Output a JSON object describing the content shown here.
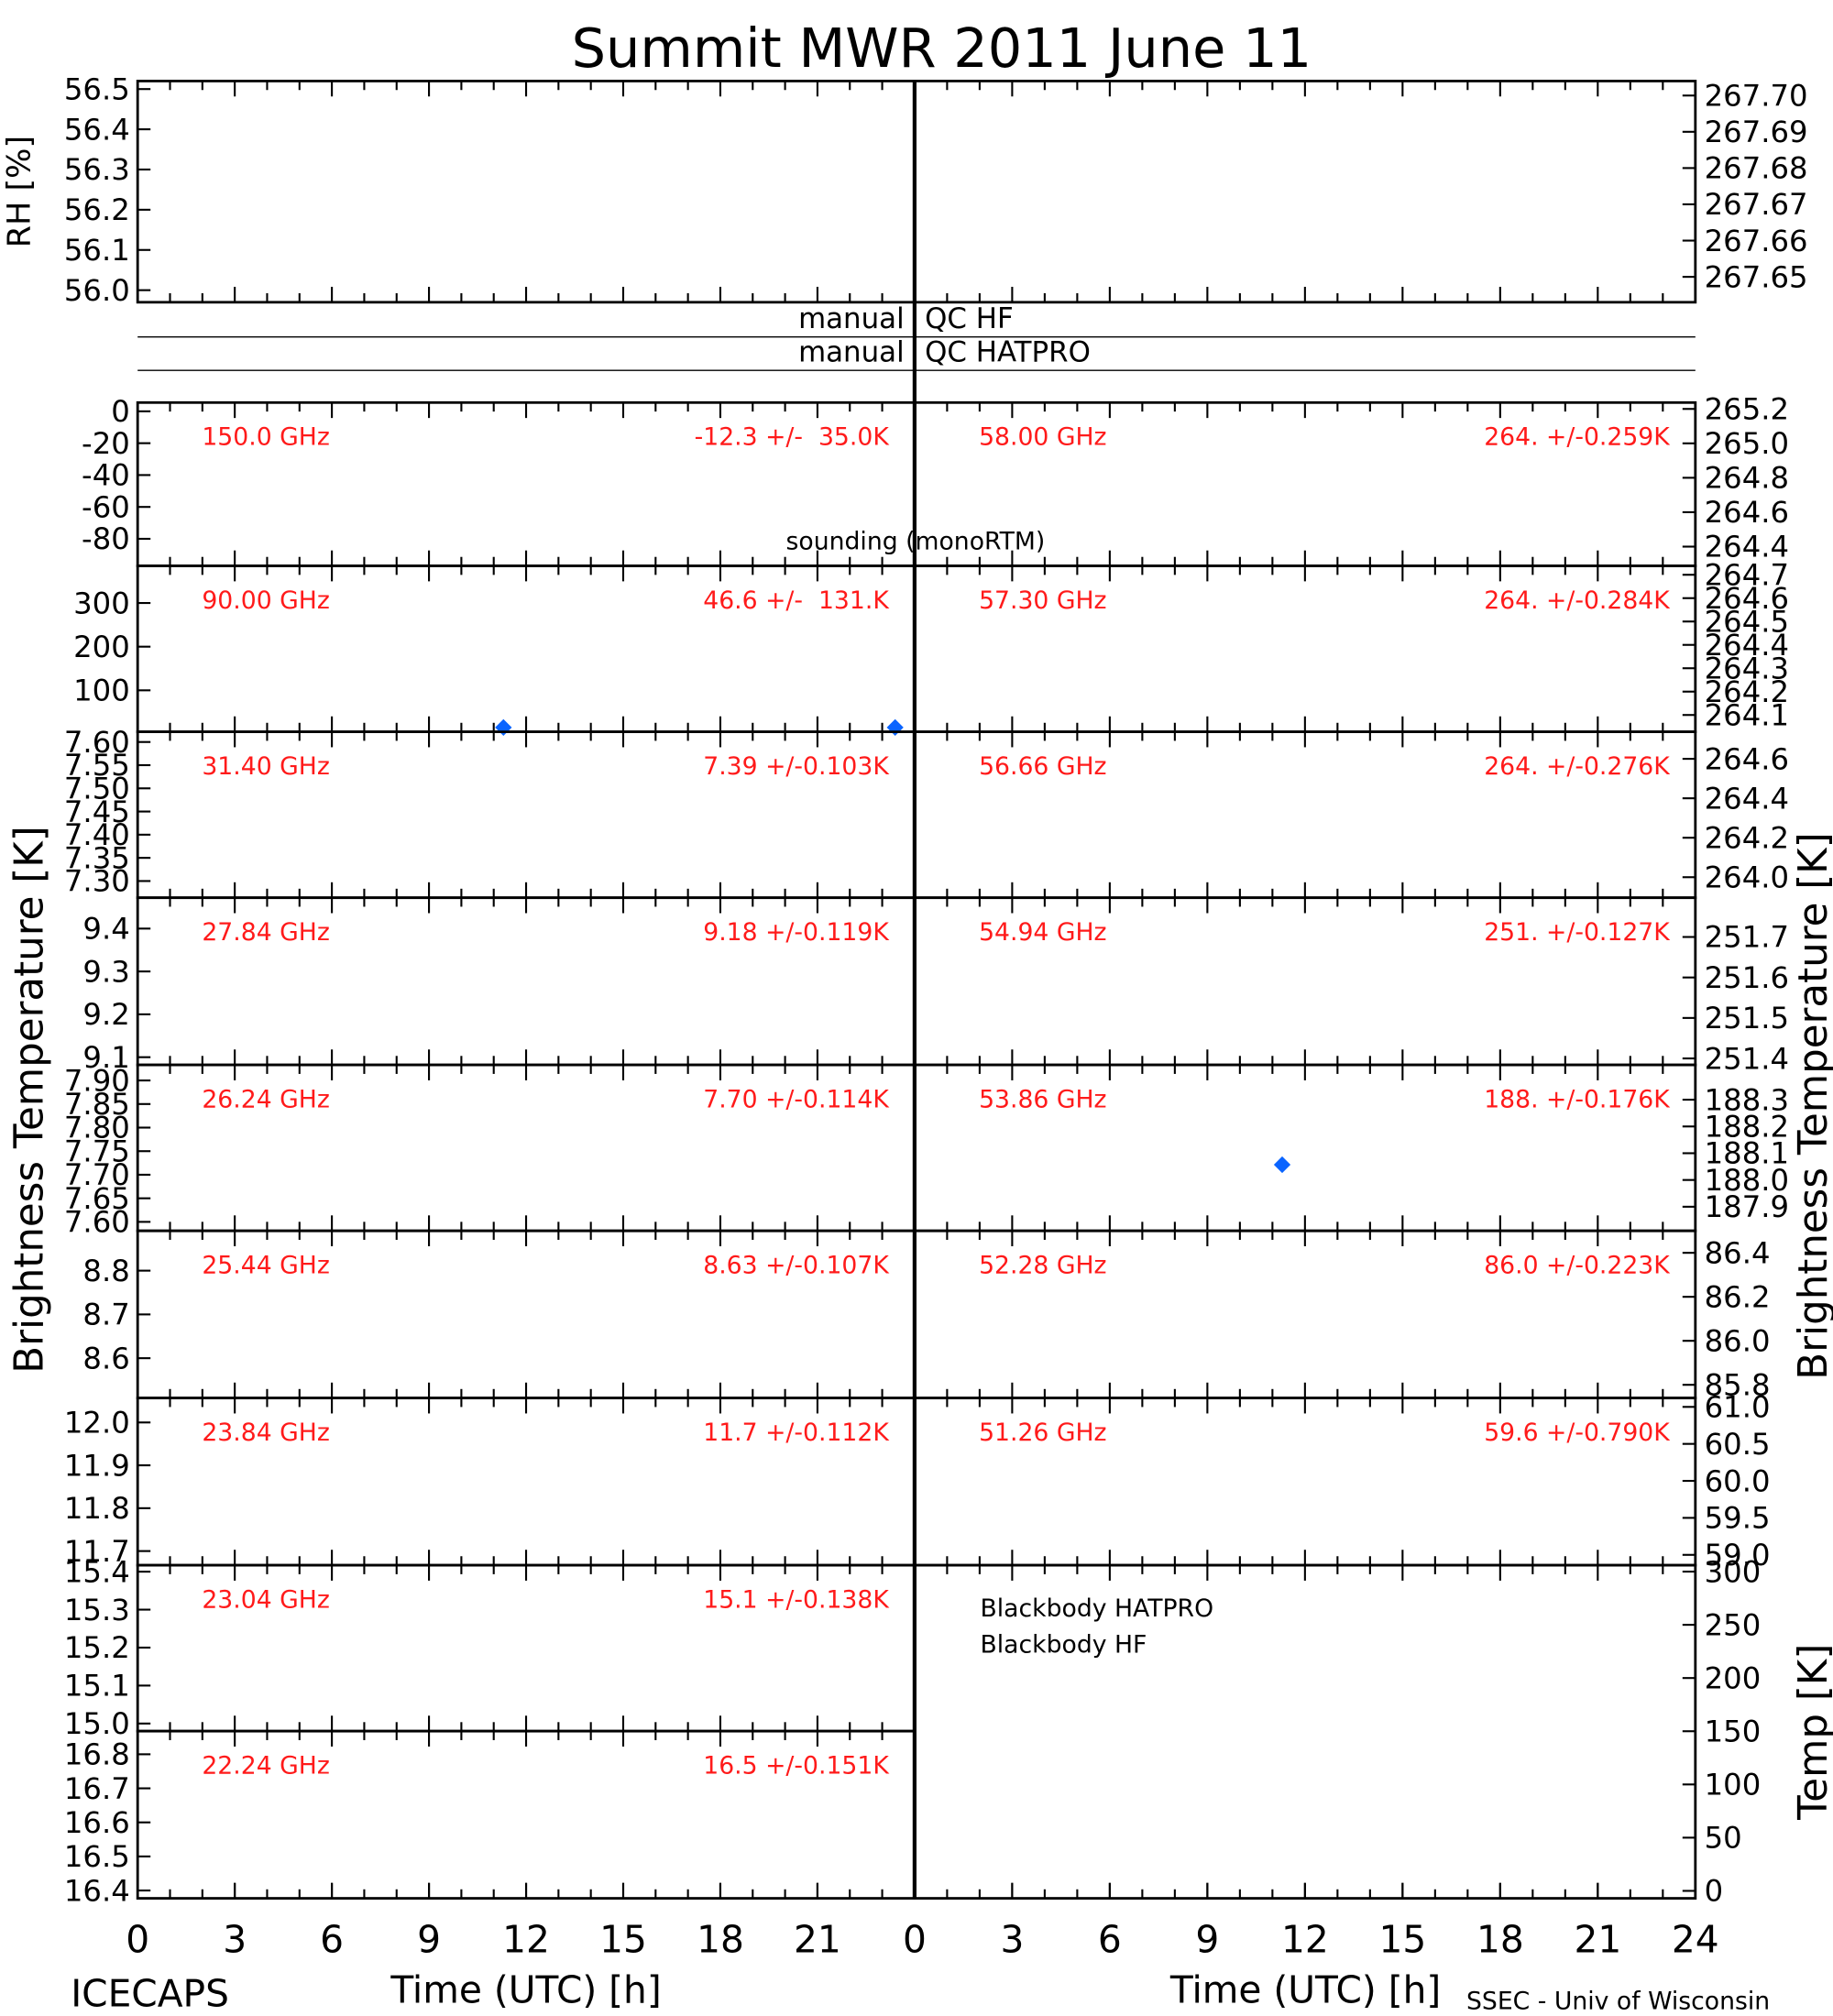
{
  "title": "Summit MWR 2011 June 11",
  "footer_left": "ICECAPS",
  "footer_right": "SSEC - Univ of Wisconsin",
  "xlabel": "Time (UTC) [h]",
  "ylabel": "Brightness Temperature [K]",
  "qc_rows": [
    {
      "label": "manual",
      "name": "QC HF"
    },
    {
      "label": "manual",
      "name": "QC HATPRO"
    }
  ],
  "legend": [
    {
      "name": "sounding (monoRTM)",
      "color": "#0a64ff"
    },
    {
      "name": "Blackbody HATPRO",
      "color": "#0a64ff"
    },
    {
      "name": "Blackbody HF",
      "color": "#5a0a78"
    }
  ],
  "chart_data": [
    {
      "type": "scatter",
      "ylabel": "RH [%]",
      "xlim": [
        0,
        24
      ],
      "ylim": [
        55.97,
        56.52
      ],
      "yticks": [
        56.5,
        56.4,
        56.3,
        56.2,
        56.1,
        {
          "value": 56,
          "label": "56.0"
        }
      ],
      "y2lim": [
        267.643,
        267.704
      ],
      "y2ticks": [
        {
          "value": 267.7,
          "label": "267.70"
        },
        267.69,
        267.68,
        267.67,
        267.66,
        {
          "value": 267.65,
          "label": "267.65"
        }
      ]
    },
    {
      "type": "scatter",
      "label": "150.0 GHz",
      "stats": "-12.3 +/-  35.0K",
      "xlim": [
        0,
        24
      ],
      "ylim": [
        -97,
        5.5
      ],
      "yticks": [
        0,
        -20,
        -40,
        -60,
        -80
      ]
    },
    {
      "type": "scatter",
      "label": "90.00 GHz",
      "stats": "46.6 +/-  131.K",
      "xlim": [
        0,
        24
      ],
      "ylim": [
        5,
        385
      ],
      "yticks": [
        300,
        200,
        100
      ],
      "x": [
        11.3,
        23.4
      ],
      "values": [
        15,
        15
      ]
    },
    {
      "type": "scatter",
      "label": "31.40 GHz",
      "stats": "7.39 +/-0.103K",
      "xlim": [
        0,
        24
      ],
      "ylim": [
        7.264,
        7.622
      ],
      "yticks": [
        {
          "value": 7.6,
          "label": "7.60"
        },
        7.55,
        {
          "value": 7.5,
          "label": "7.50"
        },
        7.45,
        {
          "value": 7.4,
          "label": "7.40"
        },
        7.35,
        {
          "value": 7.3,
          "label": "7.30"
        }
      ]
    },
    {
      "type": "scatter",
      "label": "27.84 GHz",
      "stats": "9.18 +/-0.119K",
      "xlim": [
        0,
        24
      ],
      "ylim": [
        9.082,
        9.472
      ],
      "yticks": [
        9.4,
        9.3,
        9.2,
        9.1
      ]
    },
    {
      "type": "scatter",
      "label": "26.24 GHz",
      "stats": "7.70 +/-0.114K",
      "xlim": [
        0,
        24
      ],
      "ylim": [
        7.581,
        7.933
      ],
      "yticks": [
        {
          "value": 7.9,
          "label": "7.90"
        },
        7.85,
        {
          "value": 7.8,
          "label": "7.80"
        },
        7.75,
        {
          "value": 7.7,
          "label": "7.70"
        },
        7.65,
        {
          "value": 7.6,
          "label": "7.60"
        }
      ]
    },
    {
      "type": "scatter",
      "label": "25.44 GHz",
      "stats": "8.63 +/-0.107K",
      "xlim": [
        0,
        24
      ],
      "ylim": [
        8.509,
        8.891
      ],
      "yticks": [
        8.8,
        8.7,
        8.6
      ]
    },
    {
      "type": "scatter",
      "label": "23.84 GHz",
      "stats": "11.7 +/-0.112K",
      "xlim": [
        0,
        24
      ],
      "ylim": [
        11.667,
        12.057
      ],
      "yticks": [
        {
          "value": 12,
          "label": "12.0"
        },
        11.9,
        11.8,
        11.7
      ]
    },
    {
      "type": "scatter",
      "label": "23.04 GHz",
      "stats": "15.1 +/-0.138K",
      "xlim": [
        0,
        24
      ],
      "ylim": [
        14.98,
        15.417
      ],
      "yticks": [
        15.4,
        15.3,
        15.2,
        15.1,
        {
          "value": 15,
          "label": "15.0"
        }
      ]
    },
    {
      "type": "scatter",
      "label": "22.24 GHz",
      "stats": "16.5 +/-0.151K",
      "xlim": [
        0,
        24
      ],
      "ylim": [
        16.377,
        16.868
      ],
      "yticks": [
        16.8,
        16.7,
        16.6,
        16.5,
        16.4
      ],
      "xticks": [
        0,
        3,
        6,
        9,
        12,
        15,
        18,
        21
      ]
    },
    {
      "type": "scatter",
      "label": "58.00 GHz",
      "stats": "264. +/-0.259K",
      "xlim": [
        0,
        24
      ],
      "ylim": [
        264.288,
        265.237
      ],
      "yticks": [
        265.2,
        {
          "value": 265,
          "label": "265.0"
        },
        264.8,
        264.6,
        264.4
      ]
    },
    {
      "type": "scatter",
      "label": "57.30 GHz",
      "stats": "264. +/-0.284K",
      "xlim": [
        0,
        24
      ],
      "ylim": [
        264.028,
        264.738
      ],
      "yticks": [
        264.7,
        264.6,
        264.5,
        264.4,
        264.3,
        264.2,
        264.1
      ]
    },
    {
      "type": "scatter",
      "label": "56.66 GHz",
      "stats": "264. +/-0.276K",
      "xlim": [
        0,
        24
      ],
      "ylim": [
        263.896,
        264.737
      ],
      "yticks": [
        264.6,
        264.4,
        264.2,
        {
          "value": 264,
          "label": "264.0"
        }
      ]
    },
    {
      "type": "scatter",
      "label": "54.94 GHz",
      "stats": "251. +/-0.127K",
      "xlim": [
        0,
        24
      ],
      "ylim": [
        251.384,
        251.797
      ],
      "yticks": [
        251.7,
        251.6,
        251.5,
        251.4
      ]
    },
    {
      "type": "scatter",
      "label": "53.86 GHz",
      "stats": "188. +/-0.176K",
      "xlim": [
        0,
        24
      ],
      "ylim": [
        187.81,
        188.43
      ],
      "yticks": [
        188.3,
        188.2,
        188.1,
        {
          "value": 188,
          "label": "188.0"
        },
        187.9
      ],
      "x": [
        11.3
      ],
      "values": [
        188.057
      ]
    },
    {
      "type": "scatter",
      "label": "52.28 GHz",
      "stats": "86.0 +/-0.223K",
      "xlim": [
        0,
        24
      ],
      "ylim": [
        85.74,
        86.5
      ],
      "yticks": [
        86.4,
        86.2,
        {
          "value": 86,
          "label": "86.0"
        },
        85.8
      ]
    },
    {
      "type": "scatter",
      "label": "51.26 GHz",
      "stats": "59.6 +/-0.790K",
      "xlim": [
        0,
        24
      ],
      "ylim": [
        58.86,
        61.12
      ],
      "yticks": [
        {
          "value": 61,
          "label": "61.0"
        },
        60.5,
        {
          "value": 60,
          "label": "60.0"
        },
        59.5,
        {
          "value": 59,
          "label": "59.0"
        }
      ]
    },
    {
      "type": "scatter",
      "ylabel": "Temp [K]",
      "xlim": [
        0,
        24
      ],
      "ylim": [
        -7,
        306
      ],
      "yticks": [
        300,
        250,
        200,
        150,
        100,
        50,
        0
      ],
      "xticks": [
        0,
        3,
        6,
        9,
        12,
        15,
        18,
        21,
        24
      ]
    }
  ]
}
